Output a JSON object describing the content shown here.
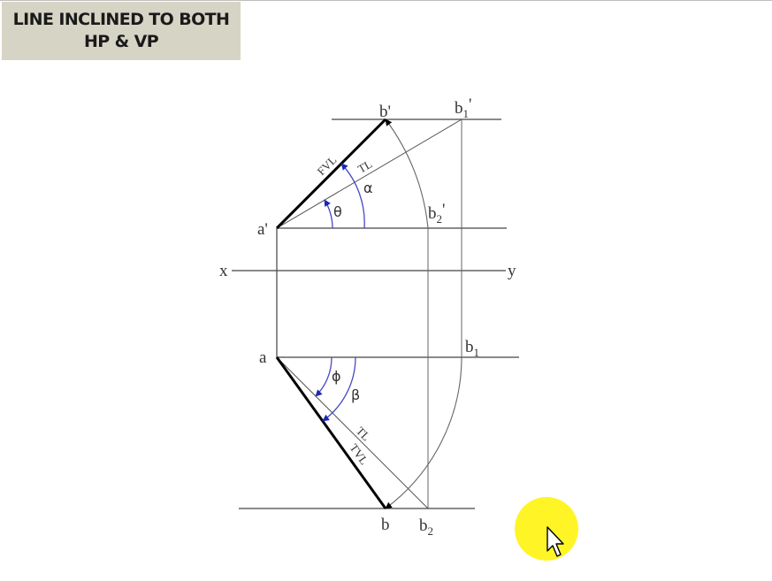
{
  "title": {
    "line1": "LINE INCLINED TO BOTH",
    "line2": "HP & VP"
  },
  "labels": {
    "b_prime": "b'",
    "b1_prime_main": "b",
    "b1_prime_sub": "1",
    "b1_prime_mark": "'",
    "a_prime": "a'",
    "b2_prime_main": "b",
    "b2_prime_sub": "2",
    "b2_prime_mark": "'",
    "x": "x",
    "y": "y",
    "a": "a",
    "b1_main": "b",
    "b1_sub": "1",
    "b": "b",
    "b2_main": "b",
    "b2_sub": "2",
    "fvl": "FVL",
    "tl_top": "TL",
    "tl_bottom": "TL",
    "tvl": "TVL",
    "theta": "θ",
    "alpha": "α",
    "phi": "ϕ",
    "beta": "β"
  },
  "colors": {
    "title_bg": "#d6d4c4",
    "line": "#444444",
    "thin_line": "#666666",
    "arc": "#4848c8",
    "arrow": "#1a2ab0",
    "thick": "#000000",
    "cursor_highlight": "#fff200"
  },
  "icons": {
    "cursor": "mouse-pointer-icon"
  }
}
